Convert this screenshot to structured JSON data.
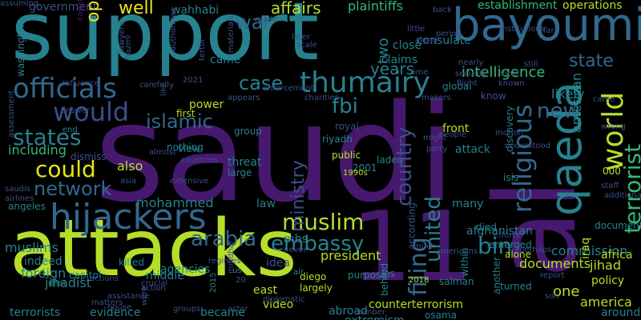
{
  "palette": {
    "background": "#000000",
    "purple": "#46186e",
    "indigo": "#3c4f8a",
    "blue": "#31688e",
    "teal": "#26828e",
    "green": "#35b779",
    "lime": "#b5de2b",
    "yellow": "#e7e419"
  },
  "words": [
    {
      "text": "saudi",
      "color": "purple"
    },
    {
      "text": "support",
      "color": "teal"
    },
    {
      "text": "attacks",
      "color": "lime"
    },
    {
      "text": "al",
      "color": "purple"
    },
    {
      "text": "11",
      "color": "purple"
    },
    {
      "text": "bayoumi",
      "color": "blue"
    },
    {
      "text": "hijackers",
      "color": "blue"
    },
    {
      "text": "qaeda",
      "color": "teal"
    },
    {
      "text": "thumairy",
      "color": "teal"
    },
    {
      "text": "officials",
      "color": "blue"
    },
    {
      "text": "would",
      "color": "indigo"
    },
    {
      "text": "could",
      "color": "yellow"
    },
    {
      "text": "states",
      "color": "teal"
    },
    {
      "text": "muslim",
      "color": "lime"
    },
    {
      "text": "islamic",
      "color": "blue"
    },
    {
      "text": "fbi",
      "color": "teal"
    },
    {
      "text": "world",
      "color": "lime"
    },
    {
      "text": "terrorist",
      "color": "green"
    },
    {
      "text": "state",
      "color": "blue"
    },
    {
      "text": "new",
      "color": "blue"
    },
    {
      "text": "religious",
      "color": "blue"
    },
    {
      "text": "country",
      "color": "indigo"
    },
    {
      "text": "bin",
      "color": "teal"
    },
    {
      "text": "united",
      "color": "teal"
    },
    {
      "text": "filing",
      "color": "blue"
    },
    {
      "text": "arabia",
      "color": "blue"
    },
    {
      "text": "embassy",
      "color": "teal"
    },
    {
      "text": "network",
      "color": "blue"
    },
    {
      "text": "ministry",
      "color": "indigo"
    },
    {
      "text": "case",
      "color": "teal"
    },
    {
      "text": "war",
      "color": "blue"
    },
    {
      "text": "intelligence",
      "color": "green"
    },
    {
      "text": "years",
      "color": "teal"
    },
    {
      "text": "two",
      "color": "teal"
    },
    {
      "text": "government",
      "color": "indigo"
    },
    {
      "text": "operatives",
      "color": "yellow"
    },
    {
      "text": "well",
      "color": "yellow"
    },
    {
      "text": "affairs",
      "color": "lime"
    },
    {
      "text": "plaintiffs",
      "color": "green"
    },
    {
      "text": "wahhabi",
      "color": "teal"
    },
    {
      "text": "made",
      "color": "indigo"
    },
    {
      "text": "establishment",
      "color": "green"
    },
    {
      "text": "operations",
      "color": "lime"
    },
    {
      "text": "back",
      "color": "indigo"
    },
    {
      "text": "consulate",
      "color": "teal"
    },
    {
      "text": "came",
      "color": "teal"
    },
    {
      "text": "close",
      "color": "teal"
    },
    {
      "text": "claims",
      "color": "teal"
    },
    {
      "text": "likely",
      "color": "teal"
    },
    {
      "text": "global",
      "color": "teal"
    },
    {
      "text": "including",
      "color": "green"
    },
    {
      "text": "also",
      "color": "lime"
    },
    {
      "text": "riyadh",
      "color": "teal"
    },
    {
      "text": "laden",
      "color": "teal"
    },
    {
      "text": "attack",
      "color": "teal"
    },
    {
      "text": "front",
      "color": "lime"
    },
    {
      "text": "public",
      "color": "lime"
    },
    {
      "text": "2001",
      "color": "teal"
    },
    {
      "text": "1990s",
      "color": "lime"
    },
    {
      "text": "mohammed",
      "color": "teal"
    },
    {
      "text": "law",
      "color": "teal"
    },
    {
      "text": "president",
      "color": "lime"
    },
    {
      "text": "jihadist",
      "color": "teal"
    },
    {
      "text": "muslims",
      "color": "teal"
    },
    {
      "text": "indeed",
      "color": "teal"
    },
    {
      "text": "foreign",
      "color": "teal"
    },
    {
      "text": "capitol",
      "color": "teal"
    },
    {
      "text": "killed",
      "color": "teal"
    },
    {
      "text": "middle",
      "color": "teal"
    },
    {
      "text": "agencies",
      "color": "teal"
    },
    {
      "text": "east",
      "color": "lime"
    },
    {
      "text": "video",
      "color": "lime"
    },
    {
      "text": "became",
      "color": "teal"
    },
    {
      "text": "evidence",
      "color": "teal"
    },
    {
      "text": "terrorists",
      "color": "teal"
    },
    {
      "text": "abroad",
      "color": "teal"
    },
    {
      "text": "extremism",
      "color": "teal"
    },
    {
      "text": "counterterrorism",
      "color": "lime"
    },
    {
      "text": "osama",
      "color": "teal"
    },
    {
      "text": "america",
      "color": "lime"
    },
    {
      "text": "around",
      "color": "teal"
    },
    {
      "text": "policy",
      "color": "lime"
    },
    {
      "text": "jihad",
      "color": "lime"
    },
    {
      "text": "commission",
      "color": "teal"
    },
    {
      "text": "africa",
      "color": "lime"
    },
    {
      "text": "documents",
      "color": "lime"
    },
    {
      "text": "document",
      "color": "teal"
    },
    {
      "text": "one",
      "color": "lime"
    },
    {
      "text": "iraq",
      "color": "lime"
    },
    {
      "text": "afghanistan",
      "color": "teal"
    },
    {
      "text": "many",
      "color": "teal"
    },
    {
      "text": "isis",
      "color": "teal"
    },
    {
      "text": "discovery",
      "color": "teal"
    },
    {
      "text": "american",
      "color": "teal"
    },
    {
      "text": "000",
      "color": "lime"
    },
    {
      "text": "first",
      "color": "lime"
    },
    {
      "text": "view",
      "color": "teal"
    },
    {
      "text": "threat",
      "color": "teal"
    },
    {
      "text": "large",
      "color": "teal"
    },
    {
      "text": "power",
      "color": "lime"
    },
    {
      "text": "group",
      "color": "teal"
    },
    {
      "text": "nothing",
      "color": "teal"
    },
    {
      "text": "washington",
      "color": "teal"
    },
    {
      "text": "mbs",
      "color": "teal"
    },
    {
      "text": "2015",
      "color": "teal"
    },
    {
      "text": "2018",
      "color": "lime"
    },
    {
      "text": "los",
      "color": "teal"
    },
    {
      "text": "diego",
      "color": "lime"
    },
    {
      "text": "largely",
      "color": "lime"
    },
    {
      "text": "behind",
      "color": "teal"
    },
    {
      "text": "salman",
      "color": "teal"
    },
    {
      "text": "according",
      "color": "indigo"
    },
    {
      "text": "another",
      "color": "teal"
    },
    {
      "text": "turned",
      "color": "teal"
    },
    {
      "text": "emerged",
      "color": "teal"
    },
    {
      "text": "alone",
      "color": "lime"
    },
    {
      "text": "died",
      "color": "teal"
    },
    {
      "text": "within",
      "color": "teal"
    },
    {
      "text": "purpose",
      "color": "teal"
    },
    {
      "text": "deal",
      "color": "teal"
    },
    {
      "text": "saudis",
      "color": "indigo"
    },
    {
      "text": "airlines",
      "color": "indigo"
    },
    {
      "text": "angeles",
      "color": "teal"
    },
    {
      "text": "assessment",
      "color": "indigo"
    },
    {
      "text": "end",
      "color": "teal"
    },
    {
      "text": "answer",
      "color": "indigo"
    },
    {
      "text": "dismiss",
      "color": "indigo"
    },
    {
      "text": "capable",
      "color": "purple"
    },
    {
      "text": "influence",
      "color": "indigo"
    },
    {
      "text": "actions",
      "color": "indigo"
    },
    {
      "text": "crucial",
      "color": "indigo"
    },
    {
      "text": "assistance",
      "color": "indigo"
    },
    {
      "text": "house",
      "color": "indigo"
    },
    {
      "text": "matters",
      "color": "indigo"
    },
    {
      "text": "were",
      "color": "indigo"
    },
    {
      "text": "action",
      "color": "indigo"
    },
    {
      "text": "asia",
      "color": "indigo"
    },
    {
      "text": "extensive",
      "color": "indigo"
    },
    {
      "text": "countries",
      "color": "indigo"
    },
    {
      "text": "almost",
      "color": "indigo"
    },
    {
      "text": "appears",
      "color": "indigo"
    },
    {
      "text": "charities",
      "color": "indigo"
    },
    {
      "text": "enforcement",
      "color": "indigo"
    },
    {
      "text": "makers",
      "color": "indigo"
    },
    {
      "text": "royal",
      "color": "indigo"
    },
    {
      "text": "people",
      "color": "indigo"
    },
    {
      "text": "party",
      "color": "indigo"
    },
    {
      "text": "might",
      "color": "indigo"
    },
    {
      "text": "know",
      "color": "indigo"
    },
    {
      "text": "flight",
      "color": "indigo"
    },
    {
      "text": "security",
      "color": "indigo"
    },
    {
      "text": "time",
      "color": "indigo"
    },
    {
      "text": "nearly",
      "color": "indigo"
    },
    {
      "text": "scale",
      "color": "indigo"
    },
    {
      "text": "later",
      "color": "indigo"
    },
    {
      "text": "along",
      "color": "indigo"
    },
    {
      "text": "little",
      "color": "indigo"
    },
    {
      "text": "period",
      "color": "indigo"
    },
    {
      "text": "far",
      "color": "indigo"
    },
    {
      "text": "still",
      "color": "indigo"
    },
    {
      "text": "local",
      "color": "indigo"
    },
    {
      "text": "known",
      "color": "indigo"
    },
    {
      "text": "institutions",
      "color": "indigo"
    },
    {
      "text": "came",
      "color": "indigo"
    },
    {
      "text": "wrong",
      "color": "indigo"
    },
    {
      "text": "staff",
      "color": "indigo"
    },
    {
      "text": "additional",
      "color": "indigo"
    },
    {
      "text": "motion",
      "color": "indigo"
    },
    {
      "text": "understood",
      "color": "indigo"
    },
    {
      "text": "son",
      "color": "indigo"
    },
    {
      "text": "report",
      "color": "indigo"
    },
    {
      "text": "perhaps",
      "color": "indigo"
    },
    {
      "text": "efforts",
      "color": "indigo"
    },
    {
      "text": "americans",
      "color": "indigo"
    },
    {
      "text": "much",
      "color": "indigo"
    },
    {
      "text": "number",
      "color": "indigo"
    },
    {
      "text": "actor",
      "color": "indigo"
    },
    {
      "text": "groups",
      "color": "indigo"
    },
    {
      "text": "regimes",
      "color": "indigo"
    },
    {
      "text": "idea",
      "color": "indigo"
    },
    {
      "text": "us",
      "color": "teal"
    },
    {
      "text": "diplomatic",
      "color": "indigo"
    },
    {
      "text": "20",
      "color": "indigo"
    },
    {
      "text": "never",
      "color": "indigo"
    },
    {
      "text": "materials",
      "color": "indigo"
    },
    {
      "text": "tertor",
      "color": "indigo"
    },
    {
      "text": "authorities",
      "color": "indigo"
    },
    {
      "text": "lawyers",
      "color": "indigo"
    },
    {
      "text": "hazmi",
      "color": "indigo"
    },
    {
      "text": "carefully",
      "color": "indigo"
    },
    {
      "text": "like",
      "color": "indigo"
    },
    {
      "text": "2021",
      "color": "indigo"
    },
    {
      "text": "air",
      "color": "teal"
    },
    {
      "text": "mihdhar",
      "color": "indigo"
    },
    {
      "text": "assuming",
      "color": "indigo"
    }
  ]
}
